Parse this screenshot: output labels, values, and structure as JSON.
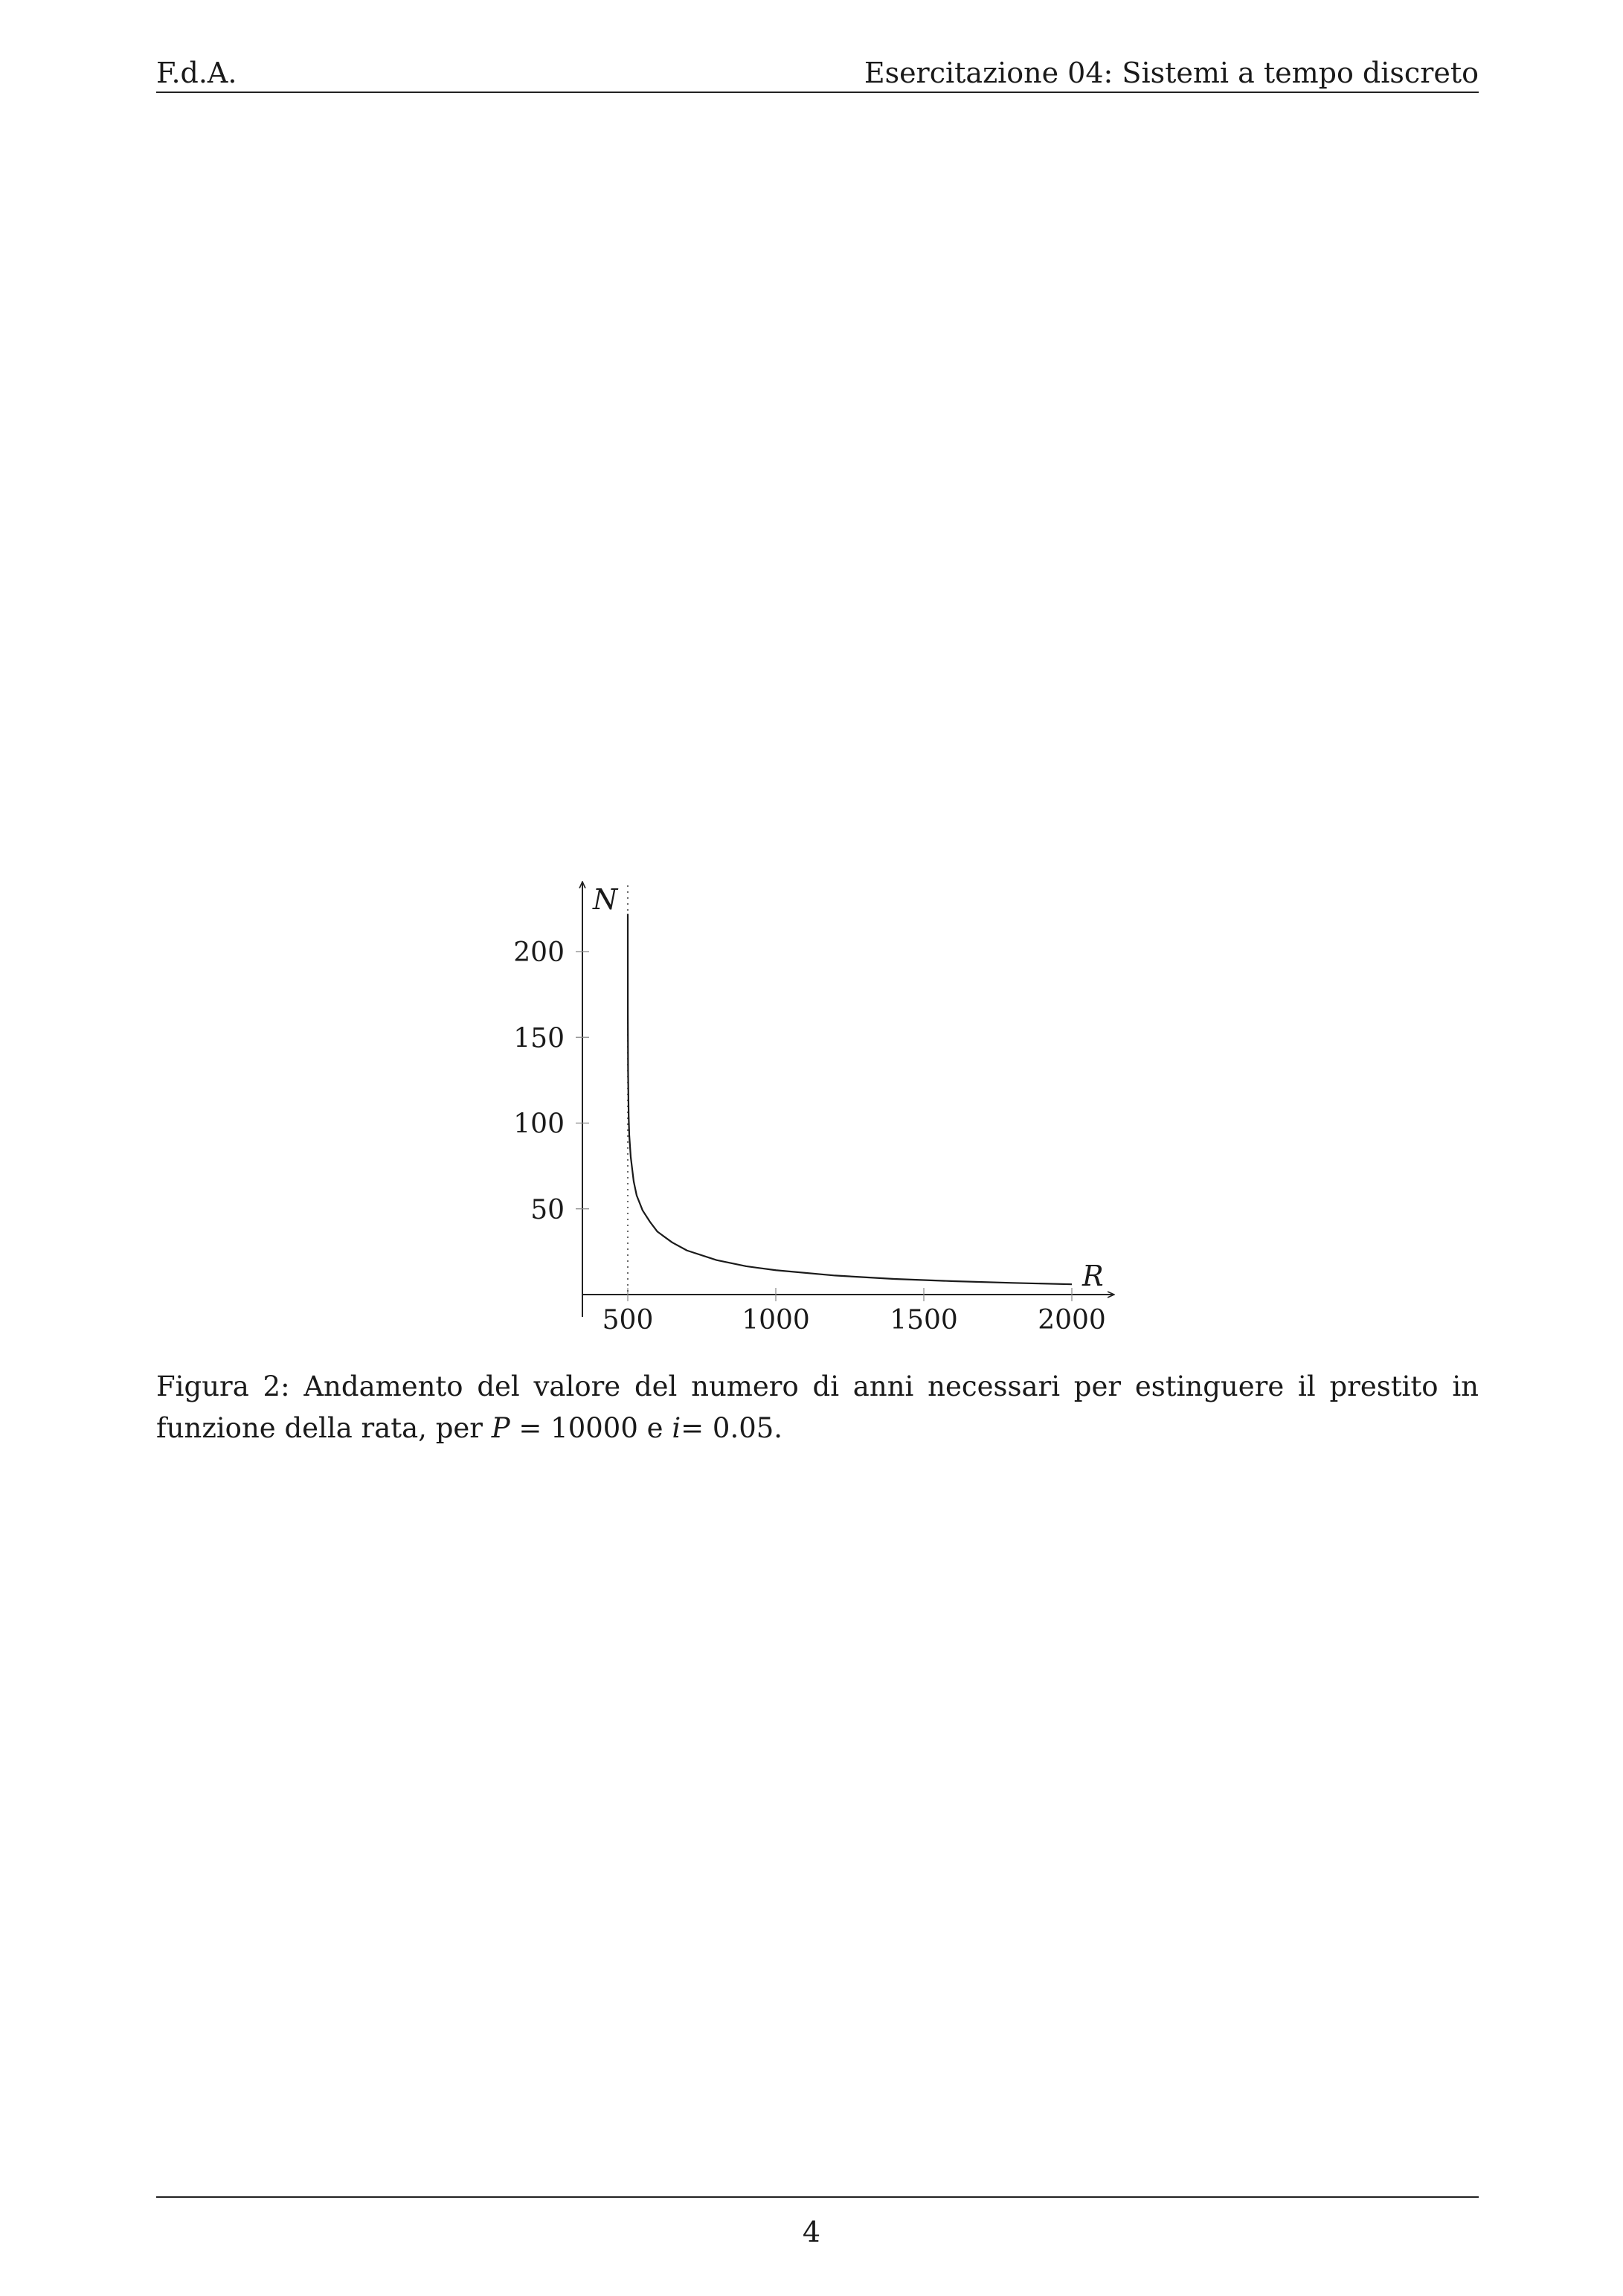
{
  "header": {
    "left": "F.d.A.",
    "right": "Esercitazione 04: Sistemi a tempo discreto"
  },
  "figure": {
    "caption_label": "Figura 2:",
    "caption_text": "Andamento del valore del numero di anni necessari per estinguere il prestito in funzione della rata, per",
    "caption_var_P": "P",
    "caption_eq1": "= 10000 e",
    "caption_var_i": "i",
    "caption_eq2": "= 0.05."
  },
  "chart_data": {
    "type": "line",
    "xlabel": "R",
    "ylabel": "N",
    "xlim": [
      150,
      2150
    ],
    "ylim": [
      0,
      240
    ],
    "xticks": [
      500,
      1000,
      1500,
      2000
    ],
    "yticks": [
      50,
      100,
      150,
      200
    ],
    "asymptote_x": 500,
    "asymptote_style": "dotted",
    "grid": false,
    "series": [
      {
        "x": [
          500.01,
          500.05,
          500.2,
          501,
          503,
          505,
          510,
          520,
          530,
          550,
          575,
          600,
          650,
          700,
          800,
          900,
          1000,
          1200,
          1400,
          1600,
          1800,
          2000
        ],
        "y": [
          222,
          192,
          163,
          130,
          104,
          93,
          80.2,
          66.0,
          57.8,
          49.1,
          42.4,
          36.7,
          30.4,
          25.7,
          20.1,
          16.5,
          14.2,
          11.1,
          9.1,
          7.8,
          6.8,
          6.0
        ]
      }
    ]
  },
  "page_number": "4"
}
